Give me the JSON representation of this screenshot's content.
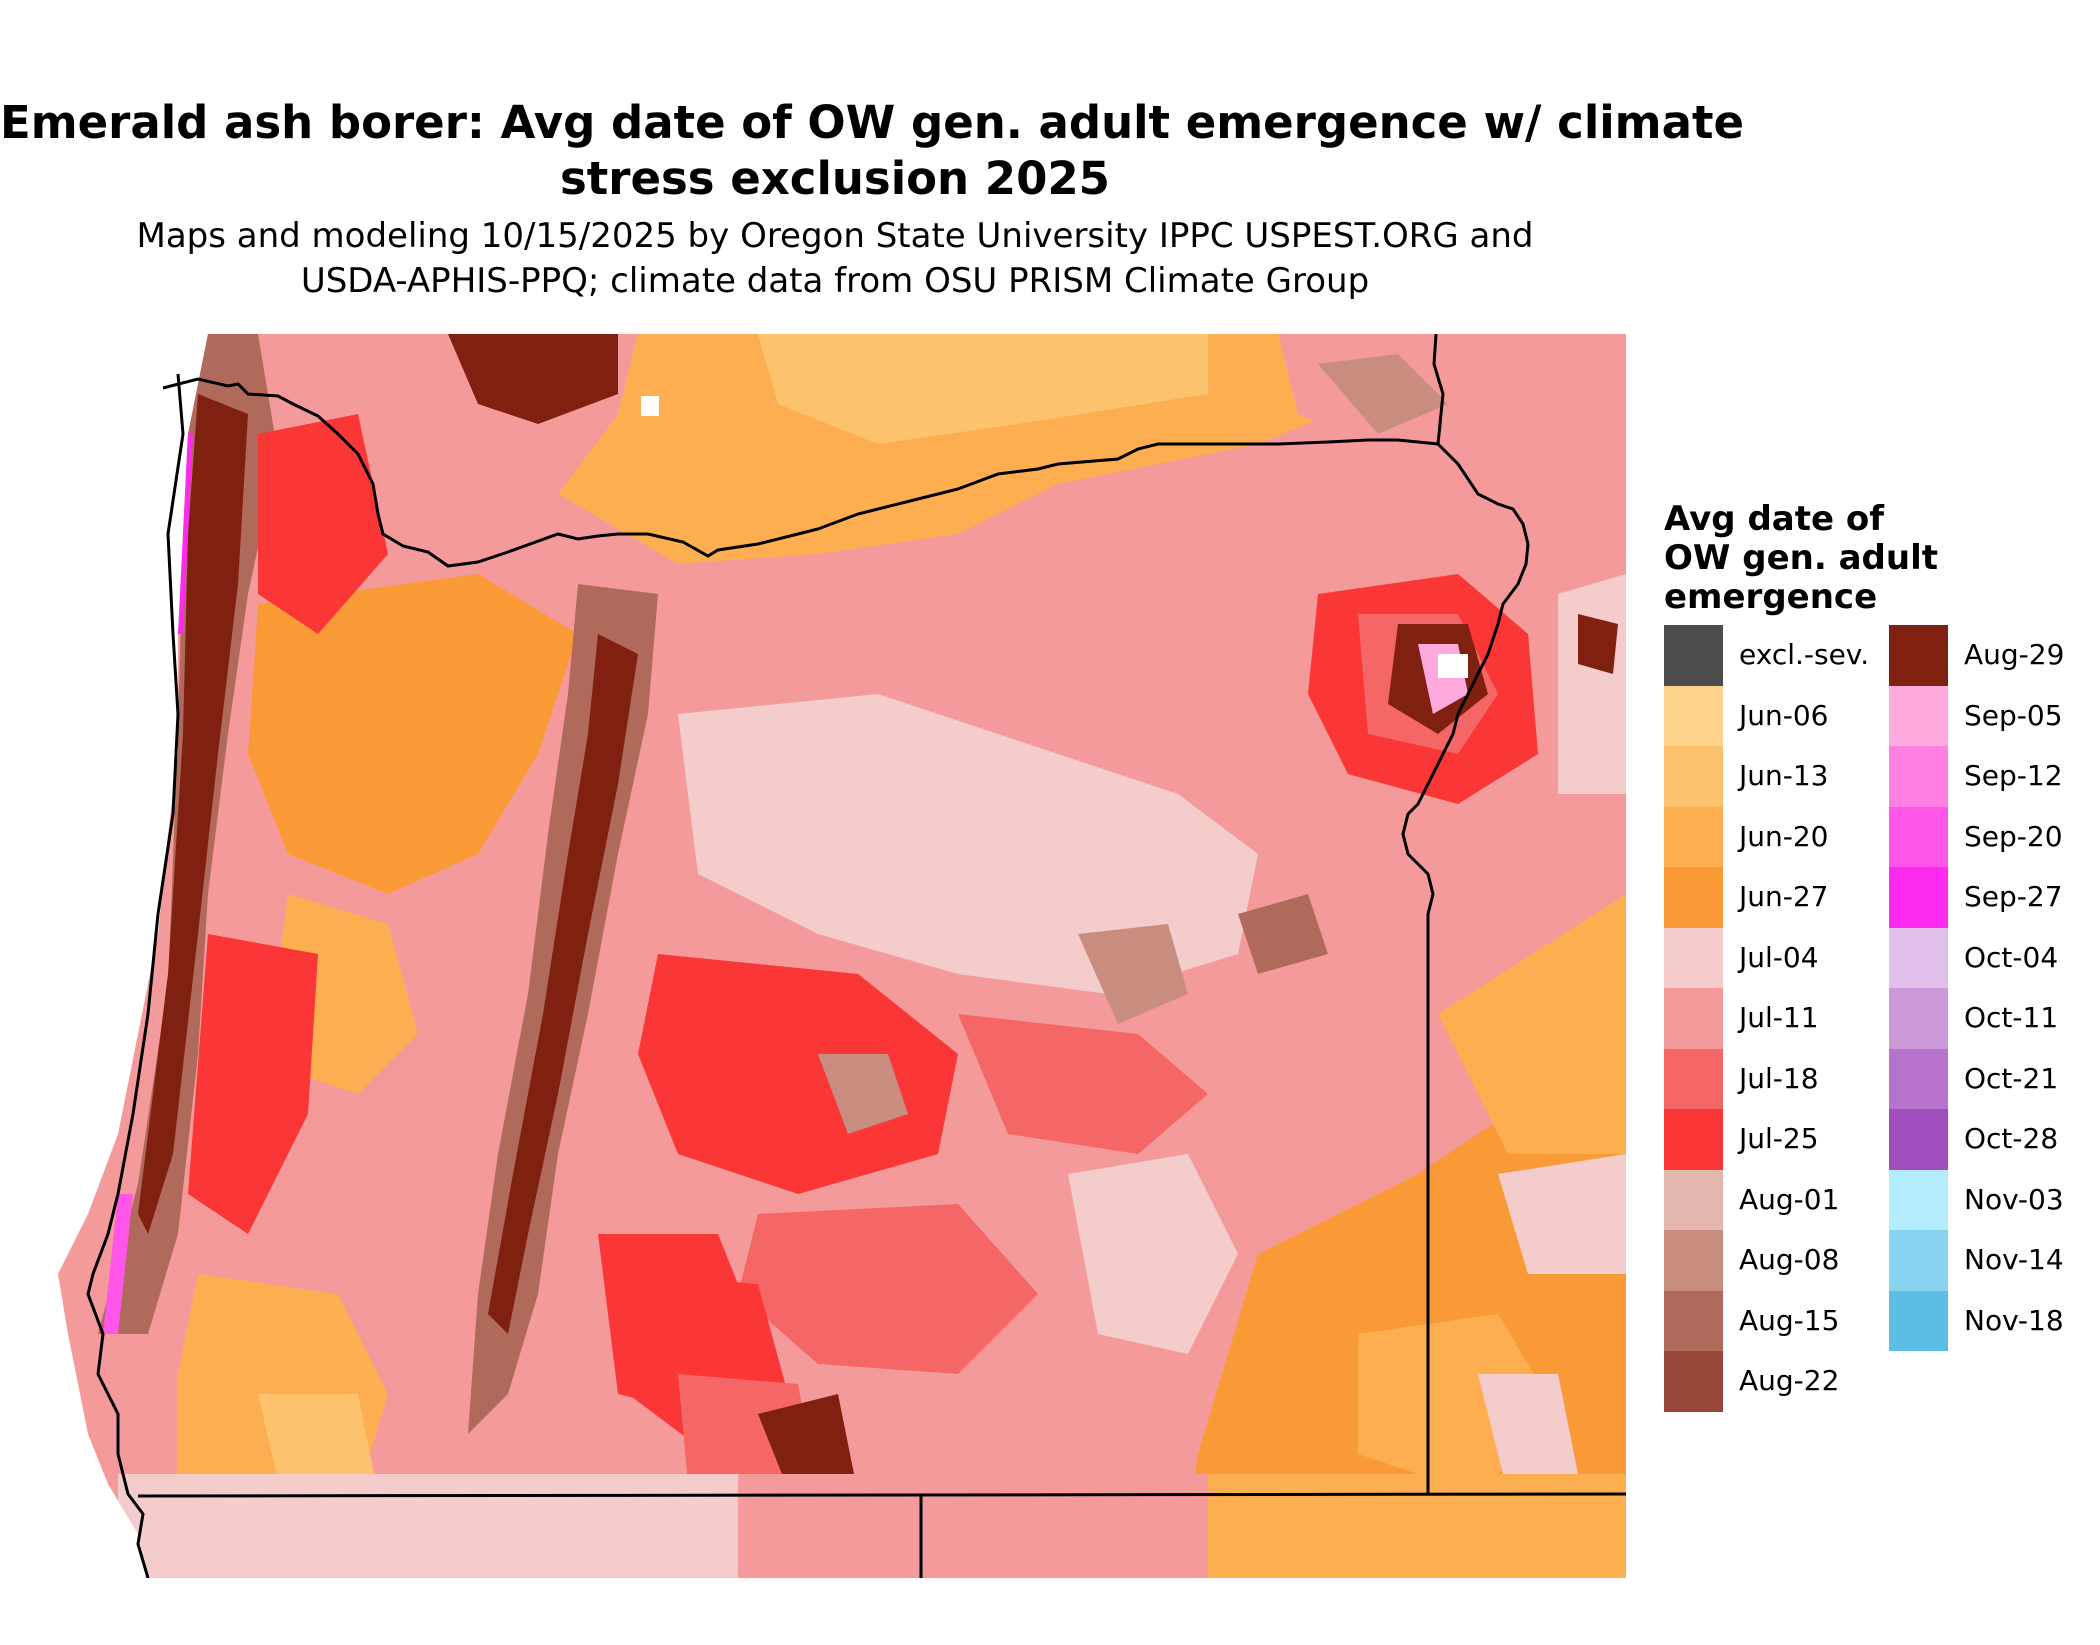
{
  "title_line1": "Emerald ash borer: Avg date of OW gen. adult emergence w/ climate",
  "title_line2": "stress exclusion 2025",
  "subtitle_line1": "Maps and modeling 10/15/2025 by Oregon State University IPPC USPEST.ORG and",
  "subtitle_line2": "USDA-APHIS-PPQ; climate data from OSU PRISM Climate Group",
  "legend": {
    "title_line1": "Avg date of",
    "title_line2": "OW gen. adult",
    "title_line3": "emergence",
    "col1": [
      {
        "label": "excl.-sev.",
        "color": "#4d4d4d"
      },
      {
        "label": "Jun-06",
        "color": "#fdd28a"
      },
      {
        "label": "Jun-13",
        "color": "#fdc26d"
      },
      {
        "label": "Jun-20",
        "color": "#fcae51"
      },
      {
        "label": "Jun-27",
        "color": "#fa9a36"
      },
      {
        "label": "Jul-04",
        "color": "#f5cccc"
      },
      {
        "label": "Jul-11",
        "color": "#f59a9a"
      },
      {
        "label": "Jul-18",
        "color": "#f56666"
      },
      {
        "label": "Jul-25",
        "color": "#fa3636"
      },
      {
        "label": "Aug-01",
        "color": "#e3b7ad"
      },
      {
        "label": "Aug-08",
        "color": "#c98d80"
      },
      {
        "label": "Aug-15",
        "color": "#b06a5c"
      },
      {
        "label": "Aug-22",
        "color": "#96473a"
      }
    ],
    "col2": [
      {
        "label": "Aug-29",
        "color": "#802010"
      },
      {
        "label": "Sep-05",
        "color": "#ffaadd"
      },
      {
        "label": "Sep-12",
        "color": "#ff80e0"
      },
      {
        "label": "Sep-20",
        "color": "#ff55e8"
      },
      {
        "label": "Sep-27",
        "color": "#ff2af0"
      },
      {
        "label": "Oct-04",
        "color": "#e0c0e8"
      },
      {
        "label": "Oct-11",
        "color": "#cc99d8"
      },
      {
        "label": "Oct-21",
        "color": "#b673cc"
      },
      {
        "label": "Oct-28",
        "color": "#a04dbd"
      },
      {
        "label": "Nov-03",
        "color": "#b3ecfc"
      },
      {
        "label": "Nov-14",
        "color": "#88d4f0"
      },
      {
        "label": "Nov-18",
        "color": "#5cbee6"
      }
    ]
  },
  "map": {
    "base_color": "#f59a9a",
    "boundary_color": "#000000"
  }
}
